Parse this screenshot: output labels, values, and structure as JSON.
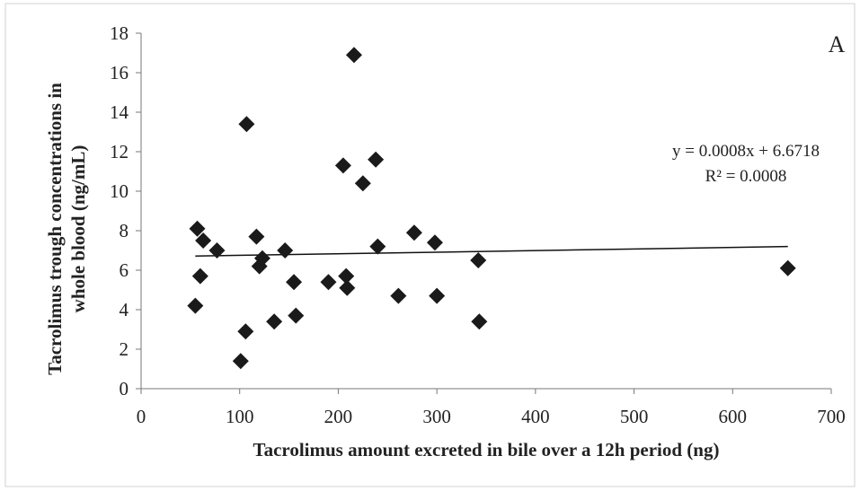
{
  "chart_data": {
    "type": "scatter",
    "panel_label": "A",
    "xlabel": "Tacrolimus amount excreted in bile over a 12h period (ng)",
    "ylabel_lines": [
      "Tacrolimus trough concentrations in",
      "whole blood (ng/mL)"
    ],
    "xlim": [
      0,
      700
    ],
    "ylim": [
      0,
      18
    ],
    "x_ticks": [
      "0",
      "100",
      "200",
      "300",
      "400",
      "500",
      "600",
      "700"
    ],
    "y_ticks": [
      "0",
      "2",
      "4",
      "6",
      "8",
      "10",
      "12",
      "14",
      "16",
      "18"
    ],
    "grid": false,
    "marker": "diamond",
    "marker_color": "#1a1a1a",
    "points": [
      {
        "x": 55,
        "y": 4.2
      },
      {
        "x": 57,
        "y": 8.1
      },
      {
        "x": 60,
        "y": 5.7
      },
      {
        "x": 63,
        "y": 7.5
      },
      {
        "x": 77,
        "y": 7.0
      },
      {
        "x": 101,
        "y": 1.4
      },
      {
        "x": 106,
        "y": 2.9
      },
      {
        "x": 107,
        "y": 13.4
      },
      {
        "x": 117,
        "y": 7.7
      },
      {
        "x": 120,
        "y": 6.2
      },
      {
        "x": 123,
        "y": 6.6
      },
      {
        "x": 135,
        "y": 3.4
      },
      {
        "x": 146,
        "y": 7.0
      },
      {
        "x": 155,
        "y": 5.4
      },
      {
        "x": 157,
        "y": 3.7
      },
      {
        "x": 190,
        "y": 5.4
      },
      {
        "x": 205,
        "y": 11.3
      },
      {
        "x": 208,
        "y": 5.7
      },
      {
        "x": 209,
        "y": 5.1
      },
      {
        "x": 216,
        "y": 16.9
      },
      {
        "x": 225,
        "y": 10.4
      },
      {
        "x": 238,
        "y": 11.6
      },
      {
        "x": 240,
        "y": 7.2
      },
      {
        "x": 261,
        "y": 4.7
      },
      {
        "x": 277,
        "y": 7.9
      },
      {
        "x": 298,
        "y": 7.4
      },
      {
        "x": 300,
        "y": 4.7
      },
      {
        "x": 342,
        "y": 6.5
      },
      {
        "x": 343,
        "y": 3.4
      },
      {
        "x": 656,
        "y": 6.1
      }
    ],
    "trendline": {
      "slope": 0.0008,
      "intercept": 6.6718,
      "x_range": [
        55,
        656
      ],
      "equation_text": "y = 0.0008x + 6.6718",
      "r2_text": "R² = 0.0008"
    }
  }
}
